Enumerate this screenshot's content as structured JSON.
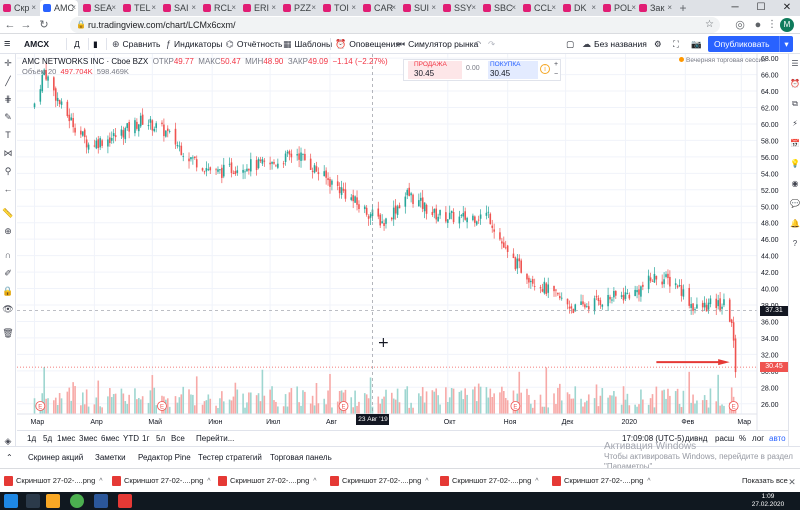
{
  "browser": {
    "tabs": [
      "Скр",
      "AMC",
      "SEA",
      "TEL",
      "SAI",
      "RCL",
      "ERI",
      "PZZ",
      "TOI",
      "CAR",
      "SUI",
      "SSY",
      "SBC",
      "CCL",
      "DK",
      "POL",
      "Зак"
    ],
    "url": "ru.tradingview.com/chart/LCMx6cxm/",
    "avatar_letter": "M"
  },
  "toolbar": {
    "symbol": "AMCX",
    "interval": "Д",
    "compare": "Сравнить",
    "indicators": "Индикаторы",
    "reports": "Отчётность",
    "templates": "Шаблоны",
    "alerts": "Оповещения",
    "replay": "Симулятор рынка",
    "layout_name": "Без названия",
    "publish": "Опубликовать"
  },
  "legend": {
    "title": "AMC NETWORKS INC · Cboe BZX",
    "open_label": "ОТКР",
    "open": "49.77",
    "high_label": "МАКС",
    "high": "50.47",
    "low_label": "МИН",
    "low": "48.90",
    "close_label": "ЗАКР",
    "close": "49.09",
    "change": "−1.14 (−2.27%)",
    "volume_label": "Объём 20",
    "volume": "497.704K",
    "volume_ma": "598.469K"
  },
  "trade_panel": {
    "sell_label": "ПРОДАЖА",
    "sell_price": "30.45",
    "spread": "0.00",
    "buy_label": "ПОКУПКА",
    "buy_price": "30.45"
  },
  "session_note": "Вечерняя торговая сессия",
  "chart_data": {
    "type": "candlestick",
    "symbol": "AMCX",
    "x_tick_labels": [
      "Мар",
      "Апр",
      "Май",
      "Июн",
      "Июл",
      "Авг",
      "Окт",
      "Ноя",
      "Дек",
      "2020",
      "Фев",
      "Мар"
    ],
    "y_tick_labels": [
      26,
      28,
      30,
      32,
      34,
      36,
      38,
      40,
      42,
      44,
      46,
      48,
      50,
      52,
      54,
      56,
      58,
      60,
      62,
      64,
      66,
      68
    ],
    "ylim": [
      25,
      68.5
    ],
    "approx_close_path": [
      {
        "date": "2019-03-01",
        "close": 62.5
      },
      {
        "date": "2019-03-06",
        "close": 66.5
      },
      {
        "date": "2019-03-15",
        "close": 62.0
      },
      {
        "date": "2019-03-29",
        "close": 57.5
      },
      {
        "date": "2019-04-12",
        "close": 58.5
      },
      {
        "date": "2019-04-26",
        "close": 60.5
      },
      {
        "date": "2019-05-08",
        "close": 59.0
      },
      {
        "date": "2019-05-20",
        "close": 56.0
      },
      {
        "date": "2019-06-03",
        "close": 54.0
      },
      {
        "date": "2019-06-17",
        "close": 55.0
      },
      {
        "date": "2019-07-01",
        "close": 55.0
      },
      {
        "date": "2019-07-15",
        "close": 56.5
      },
      {
        "date": "2019-07-29",
        "close": 53.5
      },
      {
        "date": "2019-08-07",
        "close": 52.0
      },
      {
        "date": "2019-08-16",
        "close": 50.0
      },
      {
        "date": "2019-08-29",
        "close": 48.0
      },
      {
        "date": "2019-09-10",
        "close": 51.5
      },
      {
        "date": "2019-09-24",
        "close": 49.0
      },
      {
        "date": "2019-10-08",
        "close": 48.5
      },
      {
        "date": "2019-10-22",
        "close": 49.0
      },
      {
        "date": "2019-11-01",
        "close": 44.0
      },
      {
        "date": "2019-11-12",
        "close": 41.5
      },
      {
        "date": "2019-11-26",
        "close": 39.0
      },
      {
        "date": "2019-12-06",
        "close": 37.5
      },
      {
        "date": "2019-12-18",
        "close": 38.5
      },
      {
        "date": "2020-01-06",
        "close": 39.5
      },
      {
        "date": "2020-01-17",
        "close": 41.5
      },
      {
        "date": "2020-01-28",
        "close": 40.5
      },
      {
        "date": "2020-02-06",
        "close": 37.5
      },
      {
        "date": "2020-02-14",
        "close": 38.0
      },
      {
        "date": "2020-02-21",
        "close": 38.0
      },
      {
        "date": "2020-02-25",
        "close": 36.0
      },
      {
        "date": "2020-02-26",
        "close": 33.0
      },
      {
        "date": "2020-02-27",
        "close": 30.45
      }
    ],
    "crosshair_price": "37.31",
    "last_price": "30.45",
    "crosshair_date": "23 Авг '19",
    "earnings_marker": "E",
    "colors": {
      "up": "#26a69a",
      "down": "#ef5350",
      "vol_up": "#9ed6d0",
      "vol_down": "#f7a9a7"
    }
  },
  "range_bar": {
    "ranges": [
      "1д",
      "5д",
      "1мес",
      "3мес",
      "6мес",
      "YTD",
      "1г",
      "5л",
      "Все"
    ],
    "goto": "Перейти...",
    "time": "17:09:08 (UTC-5)",
    "adjust": "дивнд",
    "ext": "расш",
    "pct": "%",
    "log": "лог",
    "auto": "авто"
  },
  "bottom_panel": {
    "tabs": [
      "Скринер акций",
      "Заметки",
      "Редактор Pine",
      "Тестер стратегий",
      "Торговая панель"
    ]
  },
  "activation": {
    "title": "Активация Windows",
    "line1": "Чтобы активировать Windows, перейдите в раздел",
    "line2": "\"Параметры\"."
  },
  "downloads": {
    "files": [
      "Скриншот 27-02-....png",
      "Скриншот 27-02-....png",
      "Скриншот 27-02-....png",
      "Скриншот 27-02-....png",
      "Скриншот 27-02-....png",
      "Скриншот 27-02-....png"
    ],
    "show_all": "Показать все"
  },
  "taskbar": {
    "time": "1:09",
    "date": "27.02.2020"
  }
}
